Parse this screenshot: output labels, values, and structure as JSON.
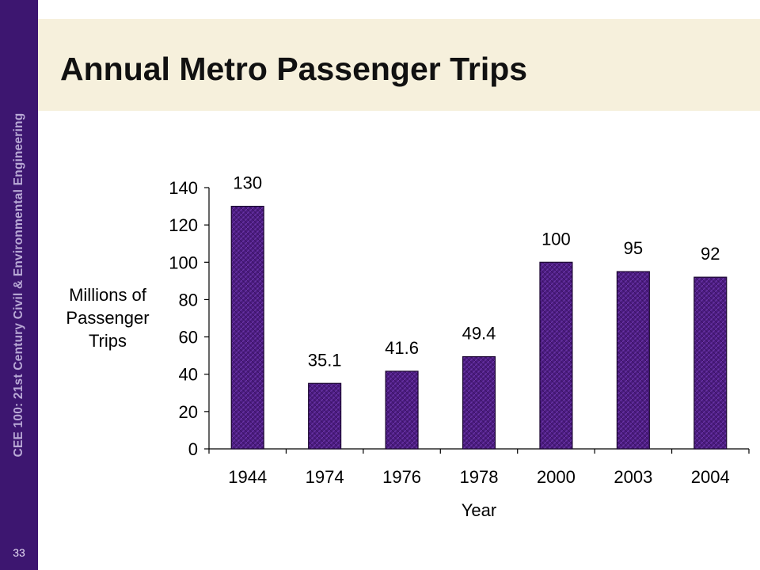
{
  "slide": {
    "sidebar_text": "CEE 100: 21st Century Civil & Environmental Engineering",
    "slide_number": "33",
    "title": "Annual Metro Passenger Trips"
  },
  "colors": {
    "sidebar": "#3d1670",
    "title_band": "#f6f0dc",
    "bar_fill": "#4b1c80"
  },
  "chart_data": {
    "type": "bar",
    "title": "Annual Metro Passenger Trips",
    "categories": [
      "1944",
      "1974",
      "1976",
      "1978",
      "2000",
      "2003",
      "2004"
    ],
    "values": [
      130,
      35.1,
      41.6,
      49.4,
      100,
      95,
      92
    ],
    "data_labels": [
      "130",
      "35.1",
      "41.6",
      "49.4",
      "100",
      "95",
      "92"
    ],
    "xlabel": "Year",
    "ylabel_lines": [
      "Millions of",
      "Passenger",
      "Trips"
    ],
    "ylim": [
      0,
      140
    ],
    "yticks": [
      0,
      20,
      40,
      60,
      80,
      100,
      120,
      140
    ],
    "grid": false,
    "legend": "none"
  }
}
